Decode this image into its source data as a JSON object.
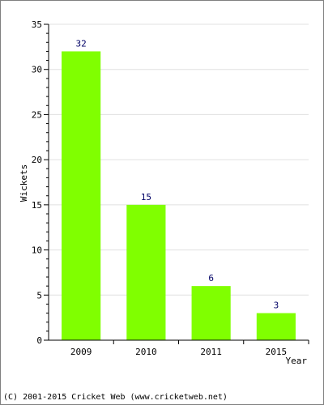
{
  "chart_data": {
    "type": "bar",
    "title": "",
    "xlabel": "Year",
    "ylabel": "Wickets",
    "categories": [
      "2009",
      "2010",
      "2011",
      "2015"
    ],
    "values": [
      32,
      15,
      6,
      3
    ],
    "ylim": [
      0,
      35
    ],
    "yticks": [
      "0",
      "5",
      "10",
      "15",
      "20",
      "25",
      "30",
      "35"
    ],
    "grid": true,
    "bar_color": "#80ff00",
    "label_color": "#000066",
    "grid_color": "#e0e0e0"
  },
  "footer": {
    "copyright": "(C) 2001-2015 Cricket Web (www.cricketweb.net)"
  }
}
